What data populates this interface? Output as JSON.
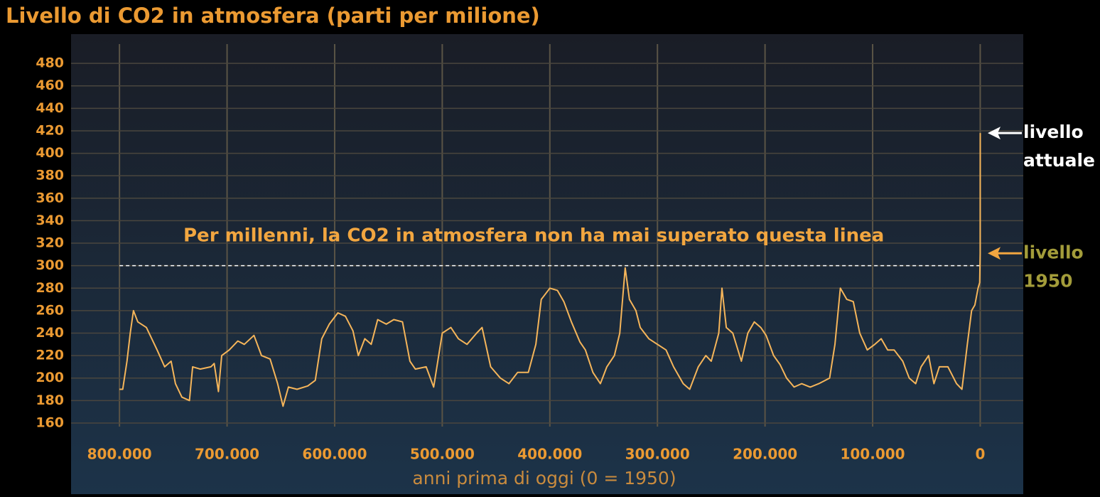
{
  "chart_data": {
    "type": "line",
    "title": "Livello di CO2 in atmosfera (parti per milione)",
    "x_label": "anni prima di oggi (0 = 1950)",
    "annotation": "Per millenni, la CO2 in atmosfera non ha mai superato questa linea",
    "reference_line": 300,
    "markers": [
      {
        "lines": [
          "livello",
          "attuale"
        ],
        "value": 418,
        "color": "#ffffff"
      },
      {
        "lines": [
          "livello",
          "1950"
        ],
        "value": 311,
        "color": "#a39c3a",
        "arrow_color": "#f2a640"
      }
    ],
    "xlim": [
      845000,
      -40000
    ],
    "ylim": [
      141,
      506
    ],
    "xticks": [
      {
        "value": 800000,
        "label": "800.000"
      },
      {
        "value": 700000,
        "label": "700.000"
      },
      {
        "value": 600000,
        "label": "600.000"
      },
      {
        "value": 500000,
        "label": "500.000"
      },
      {
        "value": 400000,
        "label": "400.000"
      },
      {
        "value": 300000,
        "label": "300.000"
      },
      {
        "value": 200000,
        "label": "200.000"
      },
      {
        "value": 100000,
        "label": "100.000"
      },
      0
    ],
    "yticks": [
      160,
      180,
      200,
      220,
      240,
      260,
      280,
      300,
      320,
      340,
      360,
      380,
      400,
      420,
      440,
      460,
      480
    ],
    "grid": true,
    "series": [
      {
        "name": "CO2",
        "color": "#f5b55a",
        "x": [
          800000,
          797000,
          793000,
          790000,
          787000,
          783000,
          775000,
          770000,
          765000,
          758000,
          752000,
          748000,
          742000,
          735000,
          732000,
          725000,
          715000,
          712000,
          708000,
          705000,
          698000,
          690000,
          684000,
          675000,
          668000,
          660000,
          653000,
          648000,
          643000,
          635000,
          625000,
          618000,
          612000,
          605000,
          597000,
          590000,
          583000,
          578000,
          572000,
          566000,
          560000,
          552000,
          545000,
          537000,
          530000,
          525000,
          515000,
          508000,
          500000,
          492000,
          485000,
          477000,
          468000,
          463000,
          455000,
          446000,
          438000,
          430000,
          420000,
          413000,
          408000,
          400000,
          393000,
          387000,
          380000,
          372000,
          367000,
          360000,
          353000,
          347000,
          340000,
          335000,
          330000,
          326000,
          320000,
          316000,
          308000,
          300000,
          292000,
          285000,
          276000,
          270000,
          262000,
          255000,
          250000,
          243000,
          240000,
          236000,
          230000,
          222000,
          216000,
          210000,
          204000,
          199000,
          192000,
          186000,
          180000,
          173000,
          166000,
          158000,
          150000,
          140000,
          135000,
          130000,
          124000,
          118000,
          112000,
          105000,
          98000,
          92000,
          86000,
          80000,
          72000,
          66000,
          60000,
          55000,
          48000,
          43000,
          38000,
          30000,
          22000,
          17000,
          12000,
          8000,
          5000,
          2000,
          500,
          0,
          -70
        ],
        "values": [
          190,
          190,
          215,
          240,
          260,
          250,
          245,
          235,
          225,
          210,
          215,
          195,
          183,
          180,
          210,
          208,
          210,
          213,
          188,
          220,
          225,
          233,
          230,
          238,
          220,
          217,
          195,
          175,
          192,
          190,
          193,
          198,
          235,
          248,
          258,
          255,
          242,
          220,
          235,
          230,
          252,
          248,
          252,
          250,
          215,
          208,
          210,
          192,
          240,
          245,
          235,
          230,
          240,
          245,
          210,
          200,
          195,
          205,
          205,
          230,
          270,
          280,
          278,
          268,
          250,
          232,
          225,
          205,
          195,
          210,
          220,
          240,
          298,
          270,
          260,
          245,
          235,
          230,
          225,
          210,
          195,
          190,
          210,
          220,
          215,
          240,
          280,
          245,
          240,
          215,
          240,
          250,
          245,
          238,
          220,
          212,
          200,
          192,
          195,
          192,
          195,
          200,
          230,
          280,
          270,
          268,
          240,
          225,
          230,
          235,
          225,
          225,
          215,
          200,
          195,
          210,
          220,
          195,
          210,
          210,
          195,
          190,
          230,
          260,
          265,
          280,
          285,
          311,
          418
        ]
      }
    ]
  }
}
